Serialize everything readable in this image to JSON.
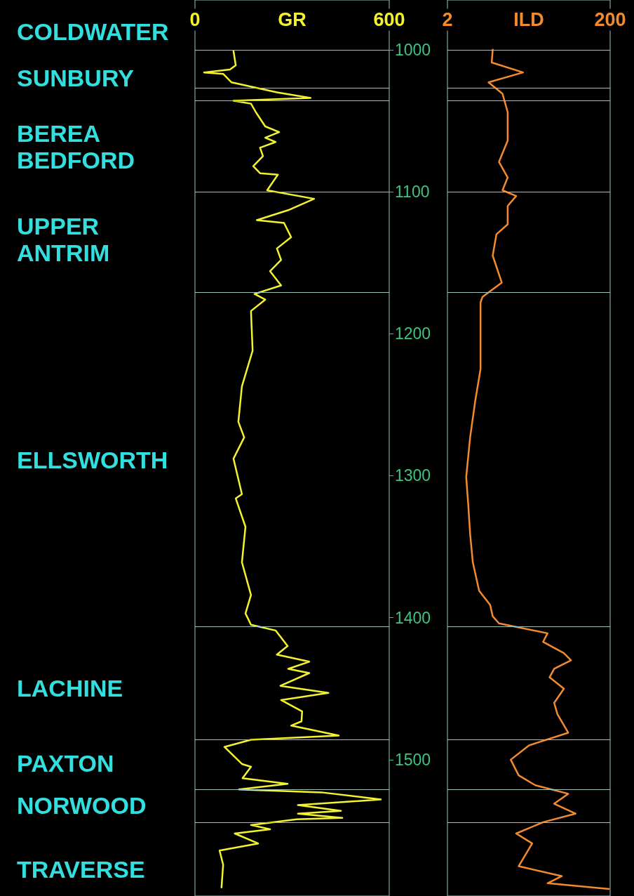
{
  "chart_data": [
    {
      "type": "line",
      "orientation": "horizontal",
      "xlabel": "GR",
      "xlim": [
        0,
        600
      ],
      "xticks": [
        0,
        600
      ],
      "ylim": [
        1596,
        965
      ],
      "tick_labels": "x",
      "marker": "none",
      "series": [
        {
          "color": "#f2f230",
          "values": [
            119,
            126,
            108,
            28,
            87,
            113,
            253,
            357,
            119,
            173,
            188,
            217,
            260,
            217,
            249,
            201,
            210,
            180,
            201,
            256,
            223,
            368,
            288,
            191,
            275,
            297,
            253,
            266,
            232,
            266,
            184,
            217,
            173,
            178,
            145,
            134,
            152,
            119,
            145,
            126,
            156,
            145,
            173,
            156,
            173,
            249,
            286,
            253,
            353,
            288,
            353,
            264,
            412,
            266,
            331,
            329,
            297,
            444,
            173,
            91,
            145,
            173,
            147,
            286,
            136,
            390,
            574,
            318,
            451,
            318,
            455,
            314,
            173,
            232,
            123,
            195,
            76,
            87,
            82
          ],
          "x": [
            1001,
            1011,
            1014,
            1016,
            1017,
            1023,
            1030,
            1034,
            1036,
            1038,
            1044,
            1054,
            1058,
            1062,
            1065,
            1069,
            1075,
            1082,
            1087,
            1088,
            1099,
            1105,
            1113,
            1120,
            1122,
            1132,
            1140,
            1148,
            1156,
            1166,
            1172,
            1176,
            1184,
            1212,
            1237,
            1262,
            1273,
            1288,
            1313,
            1316,
            1336,
            1361,
            1384,
            1397,
            1405,
            1409,
            1420,
            1426,
            1431,
            1436,
            1439,
            1448,
            1453,
            1458,
            1466,
            1473,
            1476,
            1483,
            1486,
            1491,
            1503,
            1505,
            1513,
            1517,
            1521,
            1523,
            1528,
            1532,
            1536,
            1538,
            1541,
            1542,
            1546,
            1549,
            1552,
            1559,
            1564,
            1574,
            1590
          ]
        }
      ],
      "ref_lines": [
        {
          "axis": "y",
          "value": 1000,
          "color": "#9cc4bb"
        },
        {
          "axis": "y",
          "value": 1027,
          "color": "#9cc4bb"
        },
        {
          "axis": "y",
          "value": 1036,
          "color": "#9cc4bb"
        },
        {
          "axis": "y",
          "value": 1100,
          "color": "#9cc4bb"
        },
        {
          "axis": "y",
          "value": 1171,
          "color": "#9cc4bb"
        },
        {
          "axis": "y",
          "value": 1406,
          "color": "#9cc4bb"
        },
        {
          "axis": "y",
          "value": 1486,
          "color": "#9cc4bb"
        },
        {
          "axis": "y",
          "value": 1521,
          "color": "#9cc4bb"
        },
        {
          "axis": "y",
          "value": 1544,
          "color": "#9cc4bb"
        }
      ],
      "annotations": [
        "COLDWATER",
        "SUNBURY",
        "BEREA BEDFORD",
        "UPPER ANTRIM",
        "ELLSWORTH",
        "LACHINE",
        "PAXTON",
        "NORWOOD",
        "TRAVERSE"
      ]
    },
    {
      "type": "line",
      "orientation": "horizontal",
      "xlabel": "ILD",
      "log": "x",
      "xlim": [
        2,
        200
      ],
      "xticks": [
        2,
        200
      ],
      "ylim": [
        1596,
        965
      ],
      "yticks": [
        1000,
        1100,
        1200,
        1300,
        1400,
        1500
      ],
      "marker": "none",
      "series": [
        {
          "color": "#f28a30",
          "values": [
            7.2,
            7.0,
            17,
            6.4,
            9.5,
            11,
            11,
            8.6,
            11,
            9.5,
            14,
            11,
            11,
            8.0,
            7.2,
            9.3,
            5.4,
            5.1,
            5.1,
            4.4,
            3.8,
            3.4,
            3.6,
            3.8,
            4.1,
            4.9,
            6.7,
            7.2,
            8.6,
            34,
            30,
            54,
            66,
            41,
            36,
            54,
            41,
            45,
            61,
            20,
            12,
            15,
            24,
            61,
            41,
            75,
            30,
            14,
            22,
            15,
            51,
            34,
            193
          ],
          "x": [
            1000,
            1009,
            1016,
            1023,
            1031,
            1044,
            1064,
            1079,
            1090,
            1099,
            1103,
            1110,
            1123,
            1130,
            1145,
            1164,
            1174,
            1178,
            1225,
            1247,
            1273,
            1301,
            1320,
            1341,
            1361,
            1381,
            1391,
            1399,
            1404,
            1411,
            1417,
            1425,
            1430,
            1436,
            1442,
            1450,
            1460,
            1468,
            1481,
            1490,
            1500,
            1511,
            1518,
            1524,
            1531,
            1538,
            1544,
            1552,
            1559,
            1575,
            1582,
            1587,
            1591
          ]
        }
      ],
      "ref_lines": [
        {
          "axis": "y",
          "value": 1000,
          "color": "#9cc4bb"
        },
        {
          "axis": "y",
          "value": 1027,
          "color": "#9cc4bb"
        },
        {
          "axis": "y",
          "value": 1036,
          "color": "#9cc4bb"
        },
        {
          "axis": "y",
          "value": 1100,
          "color": "#9cc4bb"
        },
        {
          "axis": "y",
          "value": 1171,
          "color": "#9cc4bb"
        },
        {
          "axis": "y",
          "value": 1406,
          "color": "#9cc4bb"
        },
        {
          "axis": "y",
          "value": 1486,
          "color": "#9cc4bb"
        },
        {
          "axis": "y",
          "value": 1521,
          "color": "#9cc4bb"
        },
        {
          "axis": "y",
          "value": 1544,
          "color": "#9cc4bb"
        }
      ]
    }
  ]
}
